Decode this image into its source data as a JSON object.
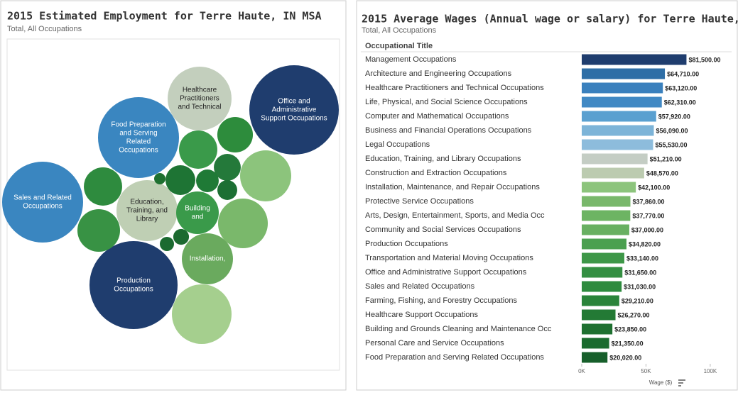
{
  "chart_data": [
    {
      "type": "bubble",
      "title": "2015 Estimated Employment for Terre Haute, IN MSA",
      "subtitle": "Total, All Occupations",
      "bubbles": [
        {
          "label_lines": [
            "Office and",
            "Administrative",
            "Support Occupations"
          ],
          "value": 8730,
          "color": "#1f3d6e"
        },
        {
          "label_lines": [
            "Production",
            "Occupations"
          ],
          "value": 8460,
          "color": "#1f3d6e"
        },
        {
          "label_lines": [
            "Sales and Related",
            "Occupations"
          ],
          "value": 7150,
          "color": "#3a86c0"
        },
        {
          "label_lines": [
            "Food Preparation",
            "and Serving",
            "Related",
            "Occupations"
          ],
          "value": 7150,
          "color": "#3a86c0"
        },
        {
          "label_lines": [
            "Healthcare",
            "Practitioners",
            "and Technical"
          ],
          "value": 4450,
          "color": "#c3cfbd"
        },
        {
          "label_lines": [
            "Education,",
            "Training, and",
            "Library"
          ],
          "value": 4070,
          "color": "#bfcfb4"
        },
        {
          "label_lines": [
            "Building",
            "and"
          ],
          "value": 1980,
          "color": "#3a9a4a"
        },
        {
          "label_lines": [
            "Installation,"
          ],
          "value": 2850,
          "color": "#6aaa5e"
        },
        {
          "label_lines": null,
          "value": 3880,
          "color": "#a5cf8e"
        },
        {
          "label_lines": null,
          "value": 2850,
          "color": "#8cc47c"
        },
        {
          "label_lines": null,
          "value": 2700,
          "color": "#7ab86b"
        },
        {
          "label_lines": null,
          "value": 1600,
          "color": "#2e8b3e"
        },
        {
          "label_lines": null,
          "value": 1980,
          "color": "#389244"
        },
        {
          "label_lines": null,
          "value": 1600,
          "color": "#3a9a4a"
        },
        {
          "label_lines": null,
          "value": 1380,
          "color": "#2d8c3c"
        },
        {
          "label_lines": null,
          "value": 790,
          "color": "#24793a"
        },
        {
          "label_lines": null,
          "value": 970,
          "color": "#1e7434"
        },
        {
          "label_lines": null,
          "value": 560,
          "color": "#1f7a36"
        },
        {
          "label_lines": null,
          "value": 430,
          "color": "#1c6f33"
        },
        {
          "label_lines": null,
          "value": 140,
          "color": "#1e7030"
        },
        {
          "label_lines": null,
          "value": 270,
          "color": "#1c6a30"
        },
        {
          "label_lines": null,
          "value": 220,
          "color": "#1b6a30"
        }
      ]
    },
    {
      "type": "hbar",
      "title": "2015 Average Wages (Annual wage or salary) for Terre Haute, IN MSA",
      "subtitle": "Total, All Occupations",
      "column_header": "Occupational Title",
      "x_label": "Wage ($)",
      "categories": [
        "Management Occupations",
        "Architecture and Engineering Occupations",
        "Healthcare Practitioners and Technical Occupations",
        "Life, Physical, and Social Science Occupations",
        "Computer and Mathematical Occupations",
        "Business and Financial Operations Occupations",
        "Legal Occupations",
        "Education, Training, and Library Occupations",
        "Construction and Extraction Occupations",
        "Installation, Maintenance, and Repair Occupations",
        "Protective Service Occupations",
        "Arts, Design, Entertainment, Sports, and Media Occ",
        "Community and Social Services Occupations",
        "Production Occupations",
        "Transportation and Material Moving Occupations",
        "Office and Administrative Support Occupations",
        "Sales and Related Occupations",
        "Farming, Fishing, and Forestry Occupations",
        "Healthcare Support Occupations",
        "Building and Grounds Cleaning and Maintenance Occ",
        "Personal Care and Service Occupations",
        "Food Preparation and Serving Related Occupations"
      ],
      "values": [
        81500,
        64710,
        63120,
        62310,
        57920,
        56090,
        55530,
        51210,
        48570,
        42100,
        37860,
        37770,
        37000,
        34820,
        33140,
        31650,
        31030,
        29210,
        26270,
        23850,
        21350,
        20020
      ],
      "value_labels": [
        "$81,500.00",
        "$64,710.00",
        "$63,120.00",
        "$62,310.00",
        "$57,920.00",
        "$56,090.00",
        "$55,530.00",
        "$51,210.00",
        "$48,570.00",
        "$42,100.00",
        "$37,860.00",
        "$37,770.00",
        "$37,000.00",
        "$34,820.00",
        "$33,140.00",
        "$31,650.00",
        "$31,030.00",
        "$29,210.00",
        "$26,270.00",
        "$23,850.00",
        "$21,350.00",
        "$20,020.00"
      ],
      "colors": [
        "#1f3d6e",
        "#2e6ea6",
        "#3a80bd",
        "#4189c4",
        "#5aa0d0",
        "#7db4d8",
        "#8dbcdc",
        "#c4cdc4",
        "#bccbb0",
        "#8cc47c",
        "#79b86b",
        "#6db463",
        "#68b061",
        "#4ba050",
        "#3e9748",
        "#348f42",
        "#2e8b3e",
        "#2a843a",
        "#237a35",
        "#1e7030",
        "#1a6b2e",
        "#175f2b"
      ],
      "xlim": [
        0,
        110000
      ],
      "xticks": [
        {
          "value": 0,
          "label": "0K"
        },
        {
          "value": 50000,
          "label": "50K"
        },
        {
          "value": 100000,
          "label": "100K"
        }
      ]
    }
  ]
}
